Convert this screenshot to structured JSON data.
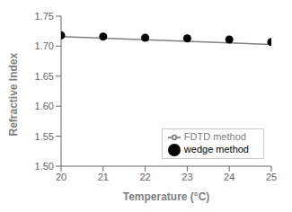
{
  "chart_data": {
    "type": "scatter",
    "xlabel": "Temperature (°C)",
    "ylabel": "Refractive Index",
    "xlim": [
      20,
      25
    ],
    "ylim": [
      1.5,
      1.75
    ],
    "xticks": [
      20,
      21,
      22,
      23,
      24,
      25
    ],
    "yticks": [
      {
        "value": 1.5,
        "label": "1.50"
      },
      1.55,
      {
        "value": 1.6,
        "label": "1.60"
      },
      1.65,
      {
        "value": 1.7,
        "label": "1.70"
      },
      1.75
    ],
    "grid": false,
    "legend": "lower right",
    "series": [
      {
        "name": "wedge method",
        "type": "scatter",
        "color": "#000000",
        "marker": "circle",
        "x": [
          20,
          21,
          22,
          23,
          24,
          25
        ],
        "values": [
          1.718,
          1.716,
          1.714,
          1.713,
          1.711,
          1.707
        ]
      },
      {
        "name": "FDTD method",
        "type": "line",
        "color": "#808080",
        "line_style": "solid",
        "x": [
          20,
          25
        ],
        "values": [
          1.716,
          1.703
        ]
      }
    ]
  }
}
